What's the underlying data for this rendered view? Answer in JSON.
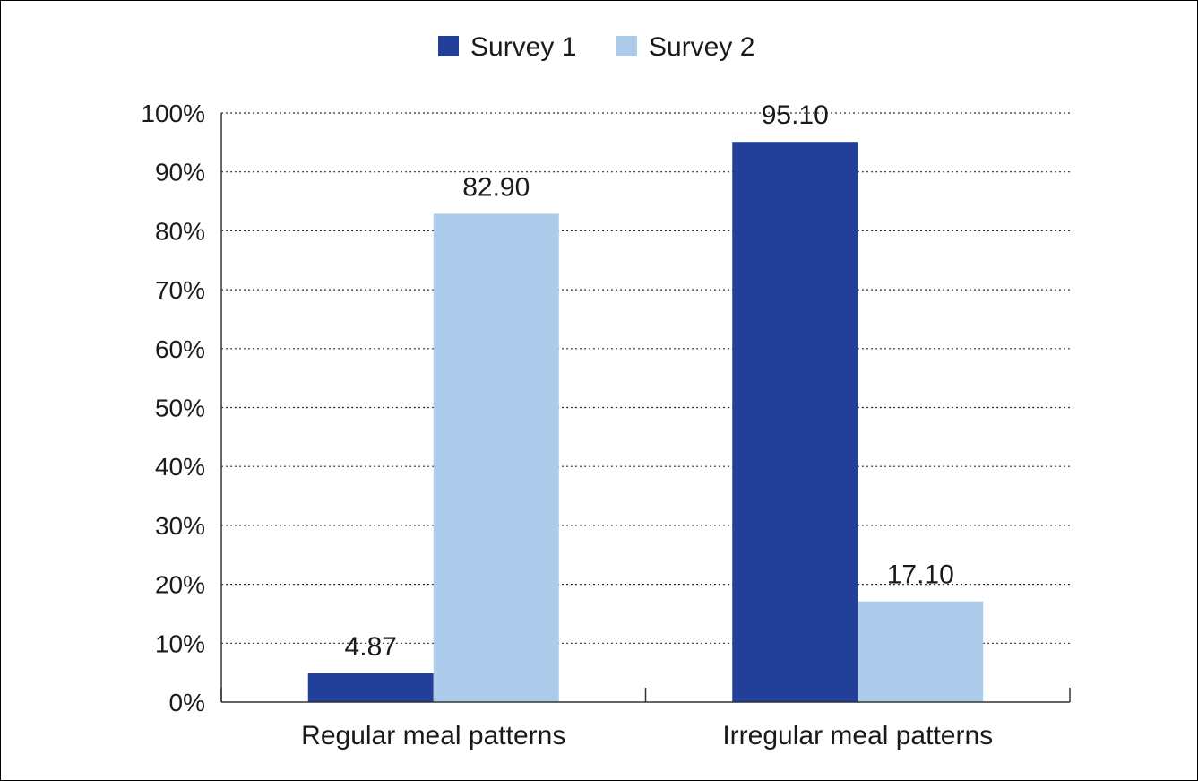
{
  "chart_data": {
    "type": "bar",
    "categories": [
      "Regular meal patterns",
      "Irregular meal patterns"
    ],
    "series": [
      {
        "name": "Survey 1",
        "values": [
          4.87,
          95.1
        ],
        "labels": [
          "4.87",
          "95.10"
        ],
        "color": "#223f99"
      },
      {
        "name": "Survey 2",
        "values": [
          82.9,
          17.1
        ],
        "labels": [
          "82.90",
          "17.10"
        ],
        "color": "#adcbeb"
      }
    ],
    "ylim": [
      0,
      100
    ],
    "yticks": [
      0,
      10,
      20,
      30,
      40,
      50,
      60,
      70,
      80,
      90,
      100
    ],
    "ytick_labels": [
      "0%",
      "10%",
      "20%",
      "30%",
      "40%",
      "50%",
      "60%",
      "70%",
      "80%",
      "90%",
      "100%"
    ],
    "title": "",
    "xlabel": "",
    "ylabel": "",
    "grid": "horizontal dotted",
    "legend": "top-center"
  }
}
